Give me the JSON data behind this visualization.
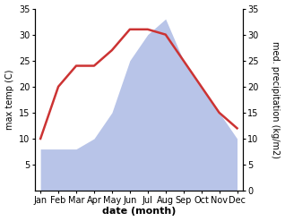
{
  "months": [
    "Jan",
    "Feb",
    "Mar",
    "Apr",
    "May",
    "Jun",
    "Jul",
    "Aug",
    "Sep",
    "Oct",
    "Nov",
    "Dec"
  ],
  "temperature": [
    10,
    20,
    24,
    24,
    27,
    31,
    31,
    30,
    25,
    20,
    15,
    12
  ],
  "precipitation": [
    8,
    8,
    8,
    10,
    15,
    25,
    30,
    33,
    25,
    20,
    15,
    10
  ],
  "temp_color": "#cc3333",
  "precip_color": "#b8c4e8",
  "ylim_left": [
    0,
    35
  ],
  "ylim_right": [
    0,
    35
  ],
  "yticks_left": [
    5,
    10,
    15,
    20,
    25,
    30,
    35
  ],
  "yticks_right": [
    0,
    5,
    10,
    15,
    20,
    25,
    30,
    35
  ],
  "xlabel": "date (month)",
  "ylabel_left": "max temp (C)",
  "ylabel_right": "med. precipitation (kg/m2)",
  "bg_color": "#ffffff",
  "line_width": 1.8,
  "tick_fontsize": 7,
  "label_fontsize": 7,
  "xlabel_fontsize": 8
}
